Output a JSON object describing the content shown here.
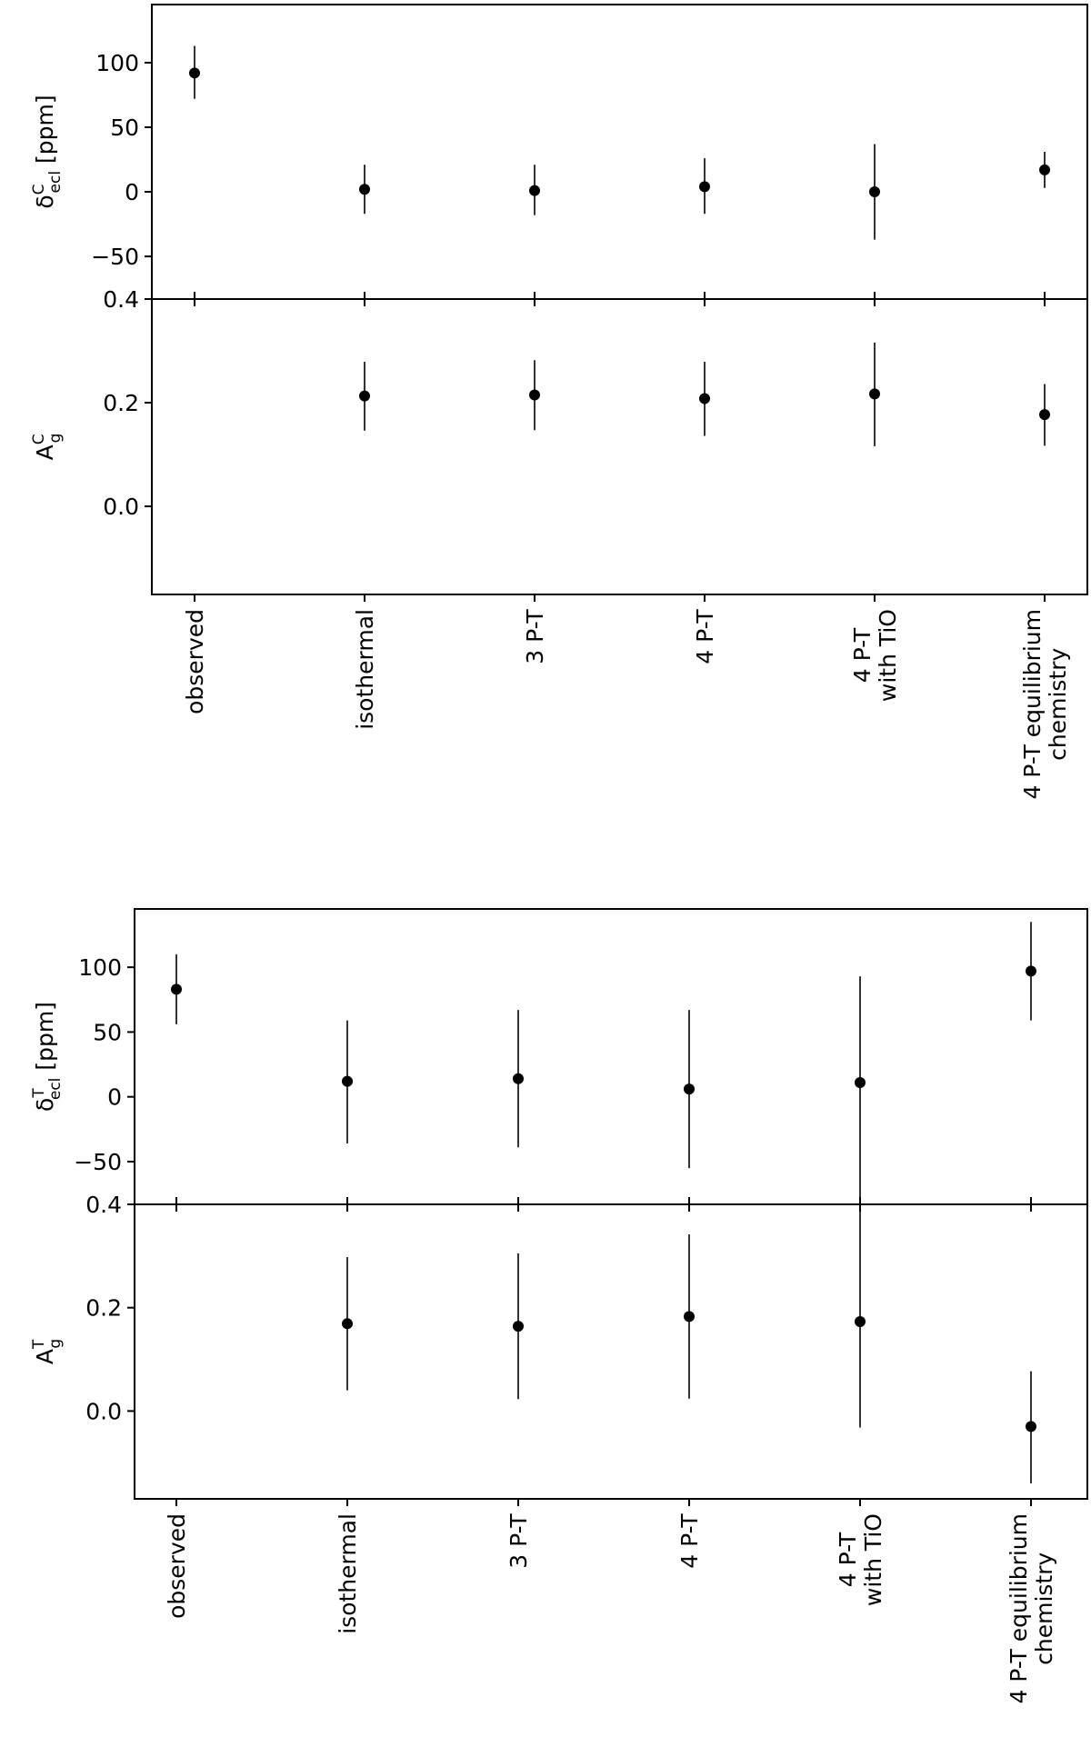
{
  "chart_data": [
    {
      "type": "scatter",
      "id": "top",
      "categories": [
        "observed",
        "isothermal",
        "3 P-T",
        "4 P-T",
        "4 P-T\nwith TiO",
        "4 P-T equilibrium\nchemistry"
      ],
      "upper": {
        "ylabel": {
          "main": "δ",
          "sup": "C",
          "sub": "ecl",
          "unit": " [ppm]"
        },
        "ylim": [
          -83,
          145
        ],
        "yticks": [
          -50,
          0,
          50,
          100
        ],
        "points": [
          {
            "y": 92,
            "lo": 72,
            "hi": 113
          },
          {
            "y": 2,
            "lo": -17,
            "hi": 21
          },
          {
            "y": 1,
            "lo": -18,
            "hi": 21
          },
          {
            "y": 4,
            "lo": -17,
            "hi": 26
          },
          {
            "y": 0,
            "lo": -37,
            "hi": 37
          },
          {
            "y": 17,
            "lo": 3,
            "hi": 31
          }
        ]
      },
      "lower": {
        "ylabel": {
          "main": "A",
          "sup": "C",
          "sub": "g"
        },
        "ylim": [
          -0.17,
          0.4
        ],
        "yticks": [
          0.0,
          0.2,
          0.4
        ],
        "ytick_labels": [
          "0.0",
          "0.2",
          "0.4"
        ],
        "points": [
          {
            "y": 0.213,
            "lo": 0.146,
            "hi": 0.279
          },
          {
            "y": 0.215,
            "lo": 0.147,
            "hi": 0.282
          },
          {
            "y": 0.208,
            "lo": 0.136,
            "hi": 0.279
          },
          {
            "y": 0.217,
            "lo": 0.116,
            "hi": 0.316
          },
          {
            "y": 0.177,
            "lo": 0.117,
            "hi": 0.236
          }
        ],
        "point_offset": 1
      }
    },
    {
      "type": "scatter",
      "id": "bottom",
      "categories": [
        "observed",
        "isothermal",
        "3 P-T",
        "4 P-T",
        "4 P-T\nwith TiO",
        "4 P-T equilibrium\nchemistry"
      ],
      "upper": {
        "ylabel": {
          "main": "δ",
          "sup": "T",
          "sub": "ecl",
          "unit": " [ppm]"
        },
        "ylim": [
          -83,
          145
        ],
        "yticks": [
          -50,
          0,
          50,
          100
        ],
        "points": [
          {
            "y": 83,
            "lo": 56,
            "hi": 110
          },
          {
            "y": 12,
            "lo": -36,
            "hi": 59
          },
          {
            "y": 14,
            "lo": -39,
            "hi": 67
          },
          {
            "y": 6,
            "lo": -55,
            "hi": 67
          },
          {
            "y": 11,
            "lo": -83,
            "hi": 93
          },
          {
            "y": 97,
            "lo": 59,
            "hi": 135
          }
        ]
      },
      "lower": {
        "ylabel": {
          "main": "A",
          "sup": "T",
          "sub": "g"
        },
        "ylim": [
          -0.17,
          0.4
        ],
        "yticks": [
          0.0,
          0.2,
          0.4
        ],
        "ytick_labels": [
          "0.0",
          "0.2",
          "0.4"
        ],
        "points": [
          {
            "y": 0.169,
            "lo": 0.04,
            "hi": 0.298
          },
          {
            "y": 0.164,
            "lo": 0.023,
            "hi": 0.305
          },
          {
            "y": 0.183,
            "lo": 0.024,
            "hi": 0.342
          },
          {
            "y": 0.173,
            "lo": -0.032,
            "hi": 0.4
          },
          {
            "y": -0.03,
            "lo": -0.14,
            "hi": 0.077
          }
        ],
        "point_offset": 1
      }
    }
  ]
}
